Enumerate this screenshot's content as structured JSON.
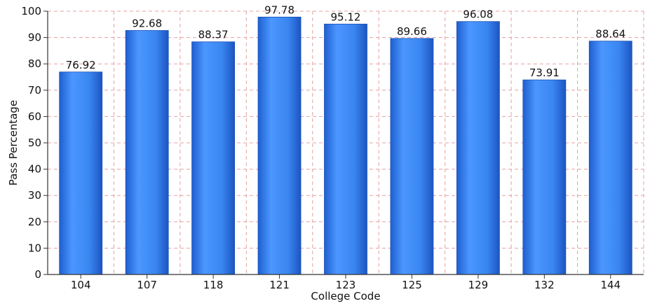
{
  "chart_data": {
    "type": "bar",
    "title": "",
    "xlabel": "College Code",
    "ylabel": "Pass Percentage",
    "categories": [
      "104",
      "107",
      "118",
      "121",
      "123",
      "125",
      "129",
      "132",
      "144"
    ],
    "values": [
      76.92,
      92.68,
      88.37,
      97.78,
      95.12,
      89.66,
      96.08,
      73.91,
      88.64
    ],
    "value_labels": [
      "76.92",
      "92.68",
      "88.37",
      "97.78",
      "95.12",
      "89.66",
      "96.08",
      "73.91",
      "88.64"
    ],
    "ylim": [
      0,
      100
    ],
    "yticks": [
      "0",
      "10",
      "20",
      "30",
      "40",
      "50",
      "60",
      "70",
      "80",
      "90",
      "100"
    ],
    "grid": true,
    "bar_color": "#3a86f0",
    "grid_color": "#e6a0a0"
  }
}
